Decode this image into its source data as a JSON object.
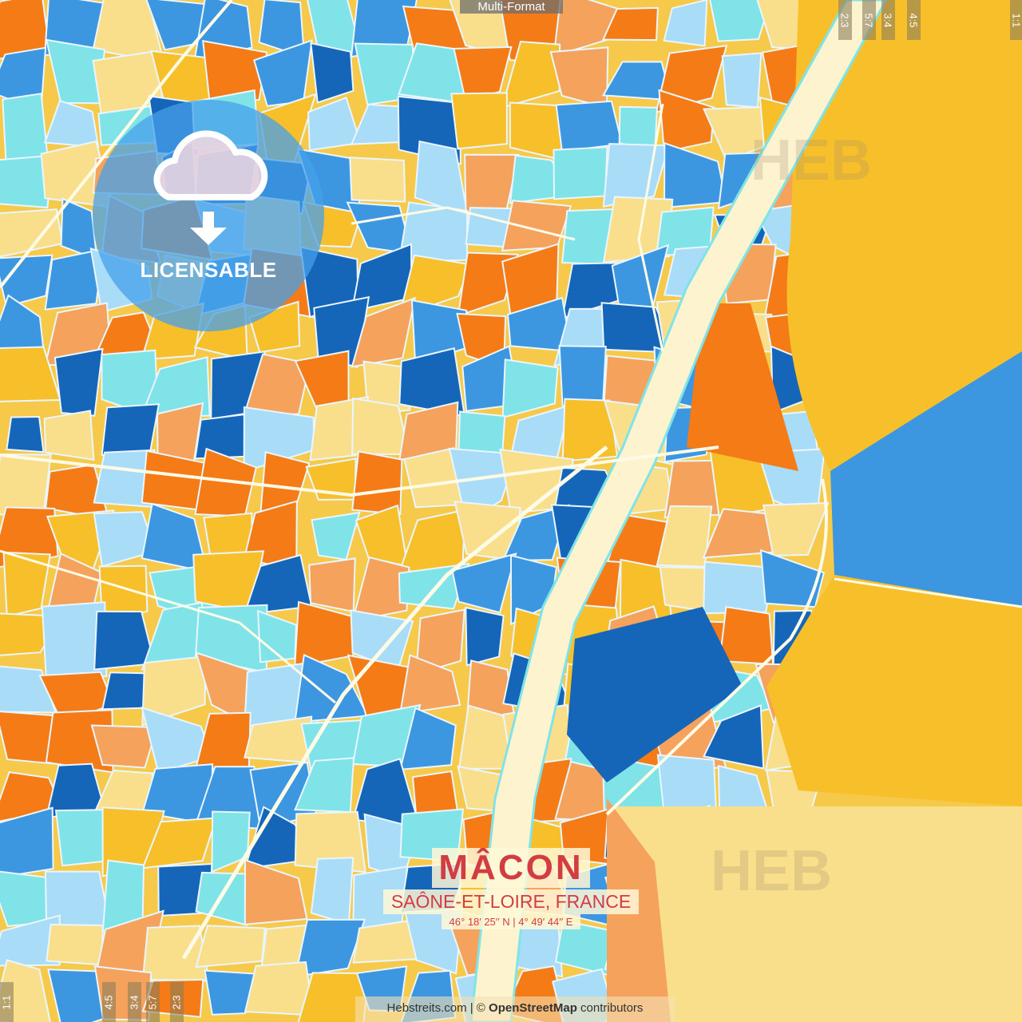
{
  "top_label": "Multi-Format",
  "badge": {
    "label": "LICENSABLE",
    "icon": "cloud-download-icon"
  },
  "title": {
    "city": "MÂCON",
    "region": "SAÔNE-ET-LOIRE, FRANCE",
    "coordinates": "46°  18′  25′′ N  |  4°  49′  44′′ E"
  },
  "footer": {
    "site": "Hebstreits.com",
    "separator": " | © ",
    "osm": "OpenStreetMap",
    "suffix": " contributors"
  },
  "ratio_tags_top": [
    "2:3",
    "5:7",
    "3:4",
    "4:5",
    "1:1"
  ],
  "ratio_tags_bottom": [
    "1:1",
    "4:5",
    "3:4",
    "5:7",
    "2:3"
  ],
  "watermark": "HEB",
  "colors": {
    "river": "#fdf3cf",
    "dark_blue": "#1565b8",
    "blue": "#3d96e0",
    "light_blue": "#a9dcf7",
    "cyan": "#7fe3e8",
    "orange": "#f47b16",
    "light_orange": "#f4a25c",
    "yellow": "#f7c02a",
    "pale_yellow": "#f9df8c",
    "title_red": "#d23c43"
  }
}
